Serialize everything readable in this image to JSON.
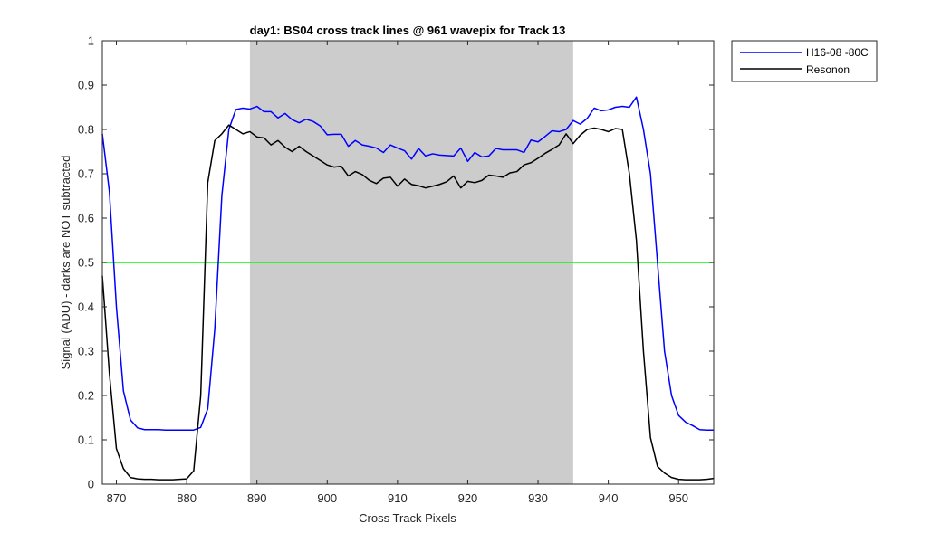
{
  "chart_data": {
    "type": "line",
    "title": "day1: BS04  cross track lines @ 961 wavepix for Track 13",
    "xlabel": "Cross Track Pixels",
    "ylabel": "Signal (ADU) - darks are NOT subtracted",
    "xlim": [
      868,
      955
    ],
    "ylim": [
      0,
      1
    ],
    "xticks": [
      870,
      880,
      890,
      900,
      910,
      920,
      930,
      940,
      950
    ],
    "yticks": [
      0,
      0.1,
      0.2,
      0.3,
      0.4,
      0.5,
      0.6,
      0.7,
      0.8,
      0.9,
      1
    ],
    "xtick_labels": [
      "870",
      "880",
      "890",
      "900",
      "910",
      "920",
      "930",
      "940",
      "950"
    ],
    "ytick_labels": [
      "0",
      "0.1",
      "0.2",
      "0.3",
      "0.4",
      "0.5",
      "0.6",
      "0.7",
      "0.8",
      "0.9",
      "1"
    ],
    "shaded_region": {
      "x": [
        889,
        935
      ],
      "color": "#cccccc"
    },
    "threshold_line": {
      "y": 0.5,
      "color": "#00ff00"
    },
    "legend_position": "outside-top-right",
    "grid": false,
    "series": [
      {
        "name": "H16-08 -80C",
        "color": "#0000ff",
        "x": [
          868,
          869,
          870,
          871,
          872,
          873,
          874,
          875,
          876,
          877,
          878,
          879,
          880,
          881,
          882,
          883,
          884,
          885,
          886,
          887,
          888,
          889,
          890,
          891,
          892,
          893,
          894,
          895,
          896,
          897,
          898,
          899,
          900,
          901,
          902,
          903,
          904,
          905,
          906,
          907,
          908,
          909,
          910,
          911,
          912,
          913,
          914,
          915,
          916,
          917,
          918,
          919,
          920,
          921,
          922,
          923,
          924,
          925,
          926,
          927,
          928,
          929,
          930,
          931,
          932,
          933,
          934,
          935,
          936,
          937,
          938,
          939,
          940,
          941,
          942,
          943,
          944,
          945,
          946,
          947,
          948,
          949,
          950,
          951,
          952,
          953,
          954,
          955
        ],
        "y": [
          0.79,
          0.66,
          0.4,
          0.21,
          0.145,
          0.127,
          0.123,
          0.123,
          0.123,
          0.122,
          0.122,
          0.122,
          0.122,
          0.122,
          0.128,
          0.17,
          0.35,
          0.65,
          0.8,
          0.845,
          0.848,
          0.846,
          0.852,
          0.84,
          0.84,
          0.826,
          0.836,
          0.822,
          0.815,
          0.823,
          0.818,
          0.808,
          0.788,
          0.789,
          0.789,
          0.762,
          0.775,
          0.765,
          0.762,
          0.758,
          0.748,
          0.765,
          0.758,
          0.752,
          0.733,
          0.757,
          0.74,
          0.745,
          0.742,
          0.741,
          0.74,
          0.758,
          0.728,
          0.748,
          0.738,
          0.74,
          0.757,
          0.754,
          0.754,
          0.754,
          0.748,
          0.776,
          0.772,
          0.784,
          0.797,
          0.795,
          0.8,
          0.82,
          0.812,
          0.825,
          0.848,
          0.842,
          0.844,
          0.85,
          0.852,
          0.85,
          0.873,
          0.8,
          0.7,
          0.5,
          0.3,
          0.2,
          0.155,
          0.14,
          0.132,
          0.123,
          0.122,
          0.122
        ]
      },
      {
        "name": "Resonon",
        "color": "#000000",
        "x": [
          868,
          869,
          870,
          871,
          872,
          873,
          874,
          875,
          876,
          877,
          878,
          879,
          880,
          881,
          882,
          883,
          884,
          885,
          886,
          887,
          888,
          889,
          890,
          891,
          892,
          893,
          894,
          895,
          896,
          897,
          898,
          899,
          900,
          901,
          902,
          903,
          904,
          905,
          906,
          907,
          908,
          909,
          910,
          911,
          912,
          913,
          914,
          915,
          916,
          917,
          918,
          919,
          920,
          921,
          922,
          923,
          924,
          925,
          926,
          927,
          928,
          929,
          930,
          931,
          932,
          933,
          934,
          935,
          936,
          937,
          938,
          939,
          940,
          941,
          942,
          943,
          944,
          945,
          946,
          947,
          948,
          949,
          950,
          951,
          952,
          953,
          954,
          955
        ],
        "y": [
          0.47,
          0.25,
          0.08,
          0.035,
          0.015,
          0.012,
          0.011,
          0.011,
          0.01,
          0.01,
          0.01,
          0.011,
          0.012,
          0.03,
          0.2,
          0.68,
          0.775,
          0.79,
          0.81,
          0.8,
          0.79,
          0.795,
          0.783,
          0.781,
          0.765,
          0.775,
          0.76,
          0.75,
          0.762,
          0.75,
          0.74,
          0.73,
          0.72,
          0.715,
          0.717,
          0.695,
          0.705,
          0.698,
          0.685,
          0.678,
          0.69,
          0.692,
          0.672,
          0.688,
          0.676,
          0.673,
          0.668,
          0.672,
          0.676,
          0.682,
          0.695,
          0.668,
          0.683,
          0.68,
          0.685,
          0.697,
          0.695,
          0.692,
          0.702,
          0.705,
          0.72,
          0.725,
          0.735,
          0.746,
          0.755,
          0.765,
          0.79,
          0.768,
          0.787,
          0.8,
          0.803,
          0.8,
          0.795,
          0.802,
          0.8,
          0.7,
          0.55,
          0.3,
          0.105,
          0.04,
          0.025,
          0.015,
          0.011,
          0.01,
          0.01,
          0.01,
          0.011,
          0.013
        ]
      }
    ]
  }
}
